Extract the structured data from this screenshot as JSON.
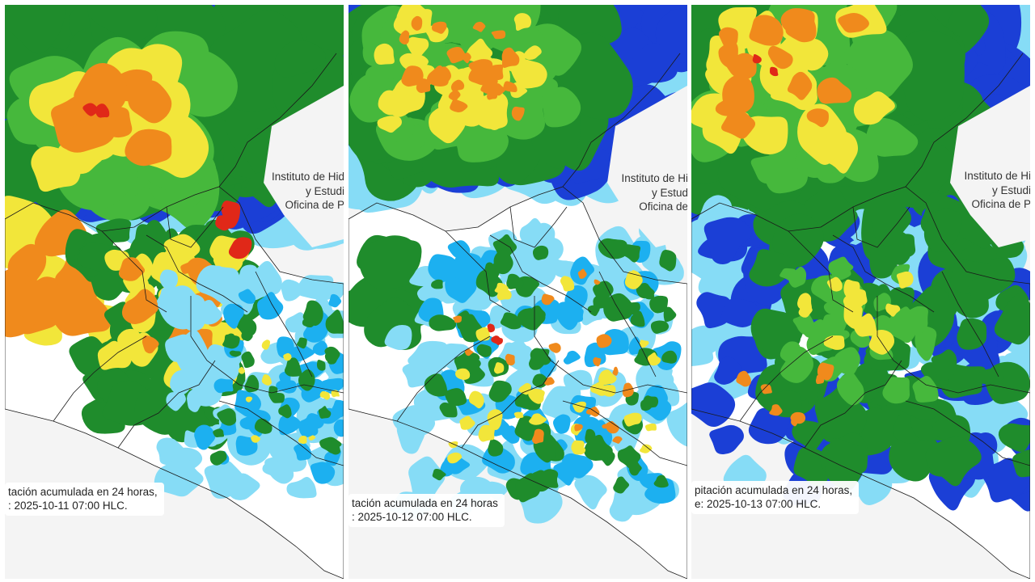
{
  "panels": [
    {
      "org_lines": [
        "Instituto de Hid",
        "y Estudi",
        "Oficina de P"
      ],
      "caption_lines": [
        "tación acumulada en 24 horas,",
        ": 2025-10-11 07:00 HLC."
      ]
    },
    {
      "org_lines": [
        "Instituto de Hi",
        "y Estud",
        "Oficina de"
      ],
      "caption_lines": [
        "tación acumulada en 24 horas",
        ": 2025-10-12 07:00 HLC."
      ]
    },
    {
      "org_lines": [
        "Instituto de Hi",
        "y Estudi",
        "Oficina de P"
      ],
      "caption_lines": [
        "pitación acumulada en 24 horas,",
        "e: 2025-10-13 07:00 HLC."
      ]
    }
  ],
  "colors": {
    "sea_dry": "#f4f4f4",
    "land_dry": "#ffffff",
    "light_blue": "#86dcf6",
    "cyan": "#1cb0f0",
    "blue": "#1b3fd6",
    "green": "#1f8c2c",
    "light_green": "#46b83c",
    "yellow": "#f2e63a",
    "orange": "#f08a1c",
    "red": "#e02818",
    "boundary": "#1a1a1a"
  }
}
